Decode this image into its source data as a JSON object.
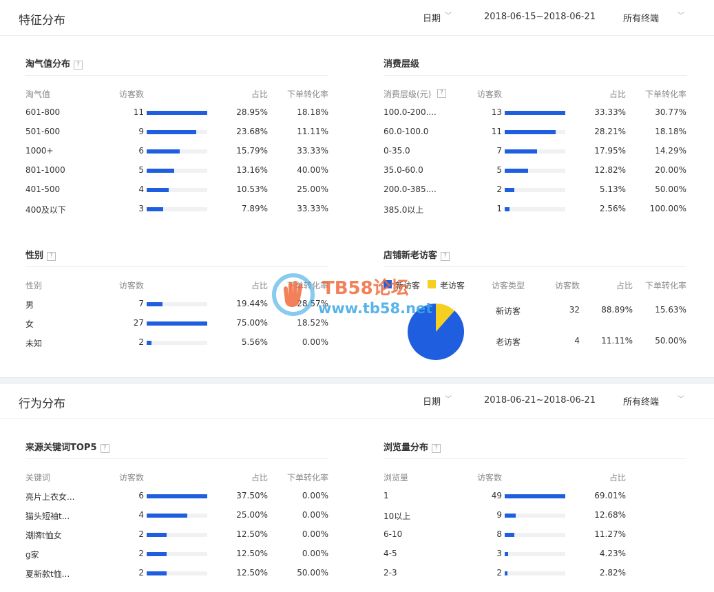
{
  "section1": {
    "title": "特征分布",
    "date_label": "日期",
    "date_range": "2018-06-15~2018-06-21",
    "terminal": "所有终端"
  },
  "section2": {
    "title": "行为分布",
    "date_label": "日期",
    "date_range": "2018-06-21~2018-06-21",
    "terminal": "所有终端"
  },
  "taoqi": {
    "title": "淘气值分布",
    "headers": [
      "淘气值",
      "访客数",
      "占比",
      "下单转化率"
    ],
    "rows": [
      {
        "label": "601-800",
        "visitors": "11",
        "share": "28.95%",
        "conv": "18.18%",
        "bar": 1.0
      },
      {
        "label": "501-600",
        "visitors": "9",
        "share": "23.68%",
        "conv": "11.11%",
        "bar": 0.82
      },
      {
        "label": "1000+",
        "visitors": "6",
        "share": "15.79%",
        "conv": "33.33%",
        "bar": 0.545
      },
      {
        "label": "801-1000",
        "visitors": "5",
        "share": "13.16%",
        "conv": "40.00%",
        "bar": 0.455
      },
      {
        "label": "401-500",
        "visitors": "4",
        "share": "10.53%",
        "conv": "25.00%",
        "bar": 0.364
      },
      {
        "label": "400及以下",
        "visitors": "3",
        "share": "7.89%",
        "conv": "33.33%",
        "bar": 0.273
      }
    ]
  },
  "consume": {
    "title": "消费层级",
    "headers": [
      "消费层级(元)",
      "访客数",
      "占比",
      "下单转化率"
    ],
    "rows": [
      {
        "label": "100.0-200....",
        "visitors": "13",
        "share": "33.33%",
        "conv": "30.77%",
        "bar": 1.0
      },
      {
        "label": "60.0-100.0",
        "visitors": "11",
        "share": "28.21%",
        "conv": "18.18%",
        "bar": 0.846
      },
      {
        "label": "0-35.0",
        "visitors": "7",
        "share": "17.95%",
        "conv": "14.29%",
        "bar": 0.538
      },
      {
        "label": "35.0-60.0",
        "visitors": "5",
        "share": "12.82%",
        "conv": "20.00%",
        "bar": 0.385
      },
      {
        "label": "200.0-385....",
        "visitors": "2",
        "share": "5.13%",
        "conv": "50.00%",
        "bar": 0.154
      },
      {
        "label": "385.0以上",
        "visitors": "1",
        "share": "2.56%",
        "conv": "100.00%",
        "bar": 0.077
      }
    ]
  },
  "gender": {
    "title": "性别",
    "headers": [
      "性别",
      "访客数",
      "占比",
      "下单转化率"
    ],
    "rows": [
      {
        "label": "男",
        "visitors": "7",
        "share": "19.44%",
        "conv": "28.57%",
        "bar": 0.259
      },
      {
        "label": "女",
        "visitors": "27",
        "share": "75.00%",
        "conv": "18.52%",
        "bar": 1.0
      },
      {
        "label": "未知",
        "visitors": "2",
        "share": "5.56%",
        "conv": "0.00%",
        "bar": 0.074
      }
    ]
  },
  "newold": {
    "title": "店铺新老访客",
    "legend": [
      {
        "name": "新访客",
        "color": "#1f5fdf"
      },
      {
        "name": "老访客",
        "color": "#f5d020"
      }
    ],
    "headers": [
      "访客类型",
      "访客数",
      "占比",
      "下单转化率"
    ],
    "rows": [
      {
        "label": "新访客",
        "visitors": "32",
        "share": "88.89%",
        "conv": "15.63%"
      },
      {
        "label": "老访客",
        "visitors": "4",
        "share": "11.11%",
        "conv": "50.00%"
      }
    ]
  },
  "keywords": {
    "title": "来源关键词TOP5",
    "headers": [
      "关键词",
      "访客数",
      "占比",
      "下单转化率"
    ],
    "rows": [
      {
        "label": "亮片上衣女...",
        "visitors": "6",
        "share": "37.50%",
        "conv": "0.00%",
        "bar": 1.0
      },
      {
        "label": "猫头短袖t...",
        "visitors": "4",
        "share": "25.00%",
        "conv": "0.00%",
        "bar": 0.667
      },
      {
        "label": "潮牌t恤女",
        "visitors": "2",
        "share": "12.50%",
        "conv": "0.00%",
        "bar": 0.333
      },
      {
        "label": "g家",
        "visitors": "2",
        "share": "12.50%",
        "conv": "0.00%",
        "bar": 0.333
      },
      {
        "label": "夏新款t恤...",
        "visitors": "2",
        "share": "12.50%",
        "conv": "50.00%",
        "bar": 0.333
      }
    ]
  },
  "pageviews": {
    "title": "浏览量分布",
    "headers": [
      "浏览量",
      "访客数",
      "占比"
    ],
    "rows": [
      {
        "label": "1",
        "visitors": "49",
        "share": "69.01%",
        "bar": 1.0
      },
      {
        "label": "10以上",
        "visitors": "9",
        "share": "12.68%",
        "bar": 0.184
      },
      {
        "label": "6-10",
        "visitors": "8",
        "share": "11.27%",
        "bar": 0.163
      },
      {
        "label": "4-5",
        "visitors": "3",
        "share": "4.23%",
        "bar": 0.061
      },
      {
        "label": "2-3",
        "visitors": "2",
        "share": "2.82%",
        "bar": 0.041
      }
    ]
  },
  "watermark": {
    "title": "TB58论坛",
    "url": "www.tb58.net"
  },
  "help_glyph": "?",
  "chevron_glyph": "﹀"
}
